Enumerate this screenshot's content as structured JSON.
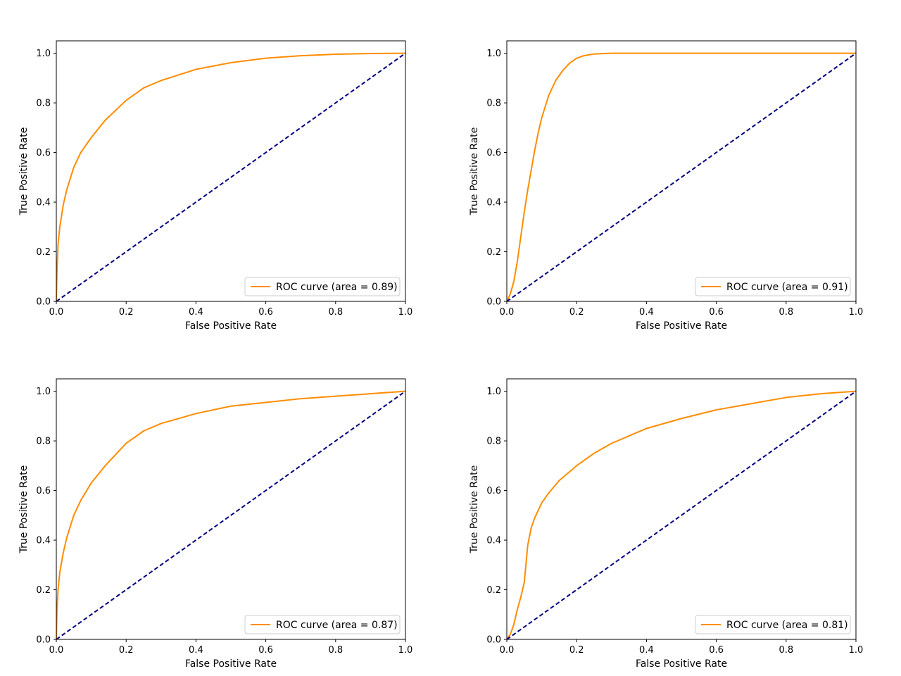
{
  "colors": {
    "roc": "#ff8c00",
    "diagonal": "#000080",
    "axes": "#000000",
    "legend_border": "#cccccc"
  },
  "chart_data": [
    {
      "type": "line",
      "xlabel": "False Positive Rate",
      "ylabel": "True Positive Rate",
      "xlim": [
        0.0,
        1.0
      ],
      "ylim": [
        0.0,
        1.05
      ],
      "xticks": [
        "0.0",
        "0.2",
        "0.4",
        "0.6",
        "0.8",
        "1.0"
      ],
      "yticks": [
        "0.0",
        "0.2",
        "0.4",
        "0.6",
        "0.8",
        "1.0"
      ],
      "grid": false,
      "legend_position": "lower-right",
      "series": [
        {
          "name": "ROC curve (area = 0.89)",
          "line_style": "solid",
          "x": [
            0.0,
            0.002,
            0.005,
            0.01,
            0.02,
            0.03,
            0.05,
            0.07,
            0.1,
            0.14,
            0.2,
            0.25,
            0.3,
            0.4,
            0.5,
            0.6,
            0.7,
            0.8,
            0.9,
            1.0
          ],
          "y": [
            0.0,
            0.12,
            0.23,
            0.3,
            0.39,
            0.45,
            0.54,
            0.6,
            0.66,
            0.73,
            0.81,
            0.86,
            0.89,
            0.935,
            0.962,
            0.98,
            0.99,
            0.996,
            0.999,
            1.0
          ]
        },
        {
          "name": "",
          "line_style": "dashed",
          "x": [
            0.0,
            1.0
          ],
          "y": [
            0.0,
            1.0
          ]
        }
      ]
    },
    {
      "type": "line",
      "xlabel": "False Positive Rate",
      "ylabel": "True Positive Rate",
      "xlim": [
        0.0,
        1.0
      ],
      "ylim": [
        0.0,
        1.05
      ],
      "xticks": [
        "0.0",
        "0.2",
        "0.4",
        "0.6",
        "0.8",
        "1.0"
      ],
      "yticks": [
        "0.0",
        "0.2",
        "0.4",
        "0.6",
        "0.8",
        "1.0"
      ],
      "grid": false,
      "legend_position": "lower-right",
      "series": [
        {
          "name": "ROC curve (area = 0.91)",
          "line_style": "solid",
          "x": [
            0.0,
            0.01,
            0.02,
            0.03,
            0.04,
            0.05,
            0.06,
            0.07,
            0.08,
            0.09,
            0.1,
            0.12,
            0.14,
            0.16,
            0.18,
            0.2,
            0.22,
            0.25,
            0.3,
            0.4,
            1.0
          ],
          "y": [
            0.0,
            0.03,
            0.08,
            0.16,
            0.26,
            0.36,
            0.45,
            0.53,
            0.61,
            0.68,
            0.74,
            0.83,
            0.89,
            0.93,
            0.96,
            0.98,
            0.99,
            0.997,
            1.0,
            1.0,
            1.0
          ]
        },
        {
          "name": "",
          "line_style": "dashed",
          "x": [
            0.0,
            1.0
          ],
          "y": [
            0.0,
            1.0
          ]
        }
      ]
    },
    {
      "type": "line",
      "xlabel": "False Positive Rate",
      "ylabel": "True Positive Rate",
      "xlim": [
        0.0,
        1.0
      ],
      "ylim": [
        0.0,
        1.05
      ],
      "xticks": [
        "0.0",
        "0.2",
        "0.4",
        "0.6",
        "0.8",
        "1.0"
      ],
      "yticks": [
        "0.0",
        "0.2",
        "0.4",
        "0.6",
        "0.8",
        "1.0"
      ],
      "grid": false,
      "legend_position": "lower-right",
      "series": [
        {
          "name": "ROC curve (area = 0.87)",
          "line_style": "solid",
          "x": [
            0.0,
            0.002,
            0.005,
            0.01,
            0.02,
            0.03,
            0.05,
            0.07,
            0.1,
            0.14,
            0.2,
            0.25,
            0.3,
            0.4,
            0.5,
            0.6,
            0.7,
            0.8,
            0.9,
            1.0
          ],
          "y": [
            0.0,
            0.12,
            0.2,
            0.27,
            0.35,
            0.41,
            0.5,
            0.56,
            0.63,
            0.7,
            0.79,
            0.84,
            0.87,
            0.91,
            0.94,
            0.955,
            0.97,
            0.98,
            0.99,
            1.0
          ]
        },
        {
          "name": "",
          "line_style": "dashed",
          "x": [
            0.0,
            1.0
          ],
          "y": [
            0.0,
            1.0
          ]
        }
      ]
    },
    {
      "type": "line",
      "xlabel": "False Positive Rate",
      "ylabel": "True Positive Rate",
      "xlim": [
        0.0,
        1.0
      ],
      "ylim": [
        0.0,
        1.05
      ],
      "xticks": [
        "0.0",
        "0.2",
        "0.4",
        "0.6",
        "0.8",
        "1.0"
      ],
      "yticks": [
        "0.0",
        "0.2",
        "0.4",
        "0.6",
        "0.8",
        "1.0"
      ],
      "grid": false,
      "legend_position": "lower-right",
      "series": [
        {
          "name": "ROC curve (area = 0.81)",
          "line_style": "solid",
          "x": [
            0.0,
            0.01,
            0.02,
            0.03,
            0.04,
            0.05,
            0.06,
            0.07,
            0.08,
            0.1,
            0.12,
            0.15,
            0.2,
            0.25,
            0.3,
            0.4,
            0.5,
            0.6,
            0.7,
            0.8,
            0.9,
            1.0
          ],
          "y": [
            0.0,
            0.02,
            0.06,
            0.12,
            0.17,
            0.23,
            0.38,
            0.45,
            0.49,
            0.55,
            0.59,
            0.64,
            0.7,
            0.75,
            0.79,
            0.85,
            0.89,
            0.925,
            0.95,
            0.975,
            0.99,
            1.0
          ]
        },
        {
          "name": "",
          "line_style": "dashed",
          "x": [
            0.0,
            1.0
          ],
          "y": [
            0.0,
            1.0
          ]
        }
      ]
    }
  ]
}
